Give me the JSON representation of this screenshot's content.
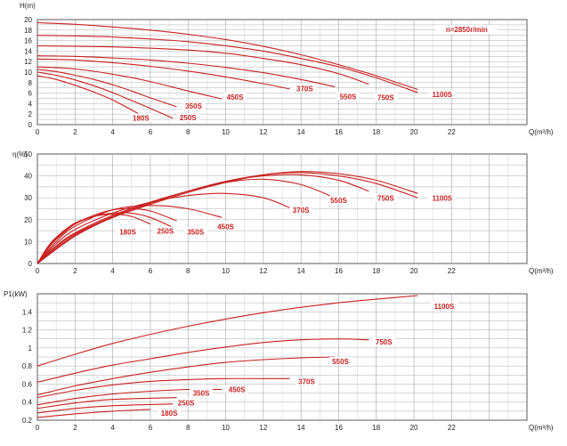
{
  "colors": {
    "curve": "#c8201e",
    "grid": "#9a9a9a",
    "axis": "#333333",
    "label_bg": "#ffffff"
  },
  "chart_data": [
    {
      "type": "line",
      "ylabel": "H(m)",
      "xlabel": "Q(m³/h)",
      "xlim": [
        0,
        26
      ],
      "ylim": [
        0,
        20
      ],
      "xticks": [
        0,
        2,
        4,
        6,
        8,
        10,
        12,
        14,
        16,
        18,
        20,
        22
      ],
      "yticks": [
        0,
        2,
        4,
        6,
        8,
        10,
        12,
        14,
        16,
        18,
        20
      ],
      "grid": true,
      "annotation": "n=2850r/min",
      "series": [
        {
          "name": "180S",
          "x": [
            0,
            1,
            2,
            3,
            4,
            5,
            6
          ],
          "y": [
            9.3,
            8.6,
            7.5,
            6.2,
            4.7,
            2.8,
            0.8
          ],
          "label_at": [
            5.5,
            1.1
          ]
        },
        {
          "name": "250S",
          "x": [
            0,
            1,
            2,
            3,
            4,
            5,
            6,
            7.2
          ],
          "y": [
            10,
            9.4,
            8.5,
            7.4,
            6.1,
            4.6,
            3.1,
            1.2
          ],
          "label_at": [
            8.0,
            1.2
          ]
        },
        {
          "name": "350S",
          "x": [
            0,
            1,
            2,
            3,
            4,
            5,
            6,
            7.4
          ],
          "y": [
            10.5,
            10.1,
            9.4,
            8.6,
            7.6,
            6.4,
            5.1,
            3.4
          ],
          "label_at": [
            8.3,
            3.4
          ]
        },
        {
          "name": "450S",
          "x": [
            0,
            2,
            4,
            6,
            8,
            9.8
          ],
          "y": [
            11,
            10.6,
            9.6,
            8.2,
            6.4,
            4.9
          ],
          "label_at": [
            10.5,
            5.1
          ]
        },
        {
          "name": "370S",
          "x": [
            0,
            2,
            4,
            6,
            8,
            10,
            12,
            13.4
          ],
          "y": [
            12.5,
            12.3,
            11.8,
            11.1,
            10.2,
            9.1,
            7.8,
            6.8
          ],
          "label_at": [
            14.2,
            6.7
          ]
        },
        {
          "name": "550S",
          "x": [
            0,
            2,
            4,
            6,
            8,
            10,
            12,
            14,
            15.8
          ],
          "y": [
            13.1,
            13,
            12.7,
            12.3,
            11.7,
            10.9,
            9.9,
            8.6,
            7.2
          ],
          "label_at": [
            16.5,
            5.2
          ]
        },
        {
          "name": "750S",
          "x": [
            0,
            4,
            8,
            10,
            12,
            14,
            16,
            17.6
          ],
          "y": [
            15,
            14.8,
            14.2,
            13.6,
            12.6,
            11.4,
            9.7,
            7.7
          ],
          "label_at": [
            18.5,
            5.0
          ]
        },
        {
          "name": "1100S",
          "x": [
            0,
            2,
            4,
            6,
            8,
            10,
            12,
            14,
            16,
            18,
            20.2
          ],
          "y": [
            17,
            16.9,
            16.7,
            16.3,
            15.8,
            15,
            14,
            12.6,
            11,
            8.9,
            6.1
          ],
          "label_at": [
            21.5,
            5.6
          ]
        },
        {
          "name": "",
          "x": [
            0,
            2,
            4,
            6,
            8,
            10,
            12,
            14,
            16,
            18,
            20.2
          ],
          "y": [
            19.4,
            19.1,
            18.6,
            18,
            17.2,
            16.2,
            14.9,
            13.3,
            11.4,
            9.3,
            6.7
          ]
        }
      ]
    },
    {
      "type": "line",
      "ylabel": "η(%)",
      "xlabel": "Q(m³/h)",
      "xlim": [
        0,
        26
      ],
      "ylim": [
        0,
        50
      ],
      "xticks": [
        0,
        2,
        4,
        6,
        8,
        10,
        12,
        14,
        16,
        18,
        20,
        22
      ],
      "yticks": [
        0,
        10,
        20,
        30,
        40,
        50
      ],
      "grid": true,
      "series": [
        {
          "name": "180S",
          "x": [
            0,
            0.5,
            1,
            2,
            3,
            4,
            5,
            6
          ],
          "y": [
            0,
            7,
            12,
            18.5,
            21.5,
            22.5,
            21.5,
            18
          ],
          "label_at": [
            4.8,
            14.0
          ]
        },
        {
          "name": "250S",
          "x": [
            0,
            0.5,
            1,
            2,
            3,
            4,
            5,
            6,
            7.2
          ],
          "y": [
            0,
            6.5,
            11.5,
            18,
            21.5,
            23,
            23,
            21,
            16.5
          ],
          "label_at": [
            6.8,
            14.4
          ]
        },
        {
          "name": "350S",
          "x": [
            0,
            0.5,
            1,
            2,
            3,
            4,
            5,
            6,
            7.4
          ],
          "y": [
            0,
            6,
            11,
            18,
            22,
            24.5,
            25,
            24,
            19.5
          ],
          "label_at": [
            8.4,
            14.0
          ]
        },
        {
          "name": "450S",
          "x": [
            0,
            1,
            2,
            4,
            6,
            8,
            9.8
          ],
          "y": [
            0,
            10,
            17,
            24.5,
            26.5,
            25,
            21
          ],
          "label_at": [
            10.0,
            16.5
          ]
        },
        {
          "name": "370S",
          "x": [
            0,
            1,
            2,
            4,
            6,
            8,
            10,
            12,
            13.4
          ],
          "y": [
            0,
            9,
            15.5,
            23,
            28,
            31,
            32,
            30,
            25.5
          ],
          "label_at": [
            14.0,
            24.0
          ]
        },
        {
          "name": "550S",
          "x": [
            0,
            1,
            2,
            4,
            6,
            8,
            10,
            12,
            14,
            15.8
          ],
          "y": [
            0,
            8,
            14,
            22,
            28,
            33,
            37,
            38.5,
            36,
            30
          ],
          "label_at": [
            16.0,
            28.5
          ]
        },
        {
          "name": "750S",
          "x": [
            0,
            1,
            2,
            4,
            6,
            8,
            10,
            12,
            14,
            16,
            17.6
          ],
          "y": [
            0,
            7.5,
            13.5,
            21.5,
            28,
            33,
            37.5,
            40,
            40.5,
            38,
            33
          ],
          "label_at": [
            18.5,
            29.5
          ]
        },
        {
          "name": "1100S",
          "x": [
            0,
            2,
            4,
            6,
            8,
            10,
            12,
            14,
            16,
            18,
            20.2
          ],
          "y": [
            0,
            13,
            21,
            27.5,
            33,
            37.5,
            40.5,
            41.5,
            40,
            36.5,
            30
          ],
          "label_at": [
            21.5,
            29.5
          ]
        },
        {
          "name": "",
          "x": [
            0,
            2,
            4,
            6,
            8,
            10,
            12,
            14,
            16,
            18,
            20.2
          ],
          "y": [
            0,
            12.5,
            21,
            27,
            32.5,
            37,
            40.5,
            42,
            41,
            38,
            32
          ]
        }
      ]
    },
    {
      "type": "line",
      "ylabel": "P1(kW)",
      "xlabel": "Q(m³/h)",
      "xlim": [
        0,
        26
      ],
      "ylim": [
        0.2,
        1.6
      ],
      "xticks": [
        0,
        2,
        4,
        6,
        8,
        10,
        12,
        14,
        16,
        18,
        20,
        22
      ],
      "yticks": [
        0.2,
        0.4,
        0.6,
        0.8,
        1,
        1.2,
        1.4
      ],
      "ytick_labels": [
        "0.2",
        "0.4",
        "0.6",
        "0.8",
        "1",
        "1.2",
        "1.4"
      ],
      "grid": true,
      "series": [
        {
          "name": "180S",
          "x": [
            0,
            2,
            4,
            6
          ],
          "y": [
            0.23,
            0.27,
            0.3,
            0.32
          ],
          "label_at": [
            7.0,
            0.27
          ]
        },
        {
          "name": "250S",
          "x": [
            0,
            2,
            4,
            7.2
          ],
          "y": [
            0.28,
            0.33,
            0.36,
            0.38
          ],
          "label_at": [
            7.9,
            0.38
          ]
        },
        {
          "name": "350S",
          "x": [
            0,
            2,
            4,
            7.4
          ],
          "y": [
            0.33,
            0.39,
            0.43,
            0.45
          ],
          "label_at": [
            8.7,
            0.49
          ]
        },
        {
          "name": "450S",
          "x": [
            0,
            2,
            4,
            6,
            8,
            9.8
          ],
          "y": [
            0.37,
            0.44,
            0.49,
            0.52,
            0.54,
            0.54
          ],
          "label_at": [
            10.6,
            0.53
          ]
        },
        {
          "name": "370S",
          "x": [
            0,
            2,
            4,
            6,
            8,
            10,
            12,
            13.4
          ],
          "y": [
            0.45,
            0.53,
            0.59,
            0.63,
            0.65,
            0.66,
            0.66,
            0.66
          ],
          "label_at": [
            14.3,
            0.62
          ]
        },
        {
          "name": "550S",
          "x": [
            0,
            2,
            4,
            6,
            8,
            10,
            12,
            14,
            15.8
          ],
          "y": [
            0.48,
            0.58,
            0.66,
            0.73,
            0.79,
            0.84,
            0.87,
            0.89,
            0.9
          ],
          "label_at": [
            16.1,
            0.84
          ]
        },
        {
          "name": "750S",
          "x": [
            0,
            2,
            4,
            6,
            8,
            10,
            12,
            14,
            16,
            17.6
          ],
          "y": [
            0.62,
            0.72,
            0.81,
            0.88,
            0.95,
            1.01,
            1.06,
            1.09,
            1.1,
            1.09
          ],
          "label_at": [
            18.4,
            1.06
          ]
        },
        {
          "name": "1100S",
          "x": [
            0,
            2,
            4,
            6,
            8,
            10,
            12,
            14,
            16,
            18,
            20.2
          ],
          "y": [
            0.8,
            0.93,
            1.05,
            1.15,
            1.24,
            1.32,
            1.39,
            1.45,
            1.5,
            1.54,
            1.58
          ],
          "label_at": [
            21.6,
            1.45
          ]
        }
      ]
    }
  ]
}
